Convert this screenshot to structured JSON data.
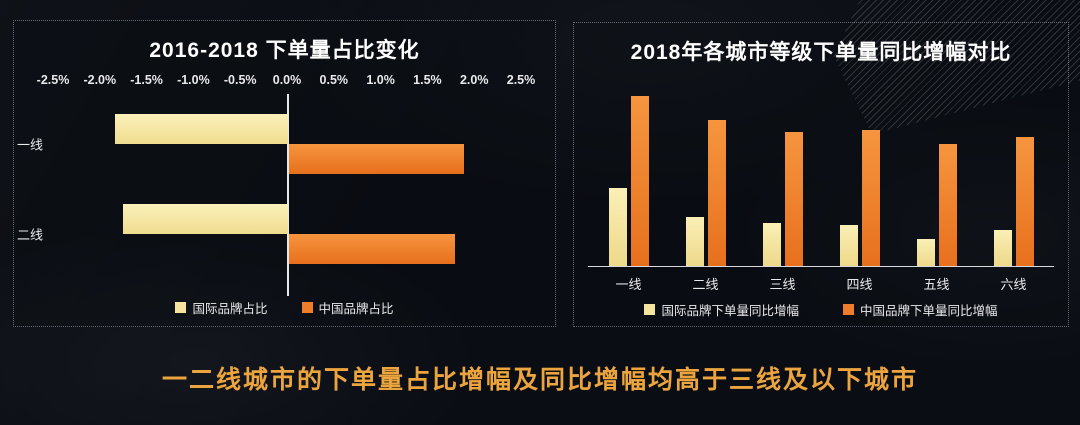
{
  "colors": {
    "background": "#0a0d13",
    "panel_border": "#afb4c0",
    "international_series": "#F5E49D",
    "china_series": "#EF7D2A",
    "axis_text": "#E9E9EC",
    "title_text": "#FFFFFF",
    "note_text": "#ECA53E"
  },
  "bottom_note": "一二线城市的下单量占比增幅及同比增幅均高于三线及以下城市",
  "chart_data": [
    {
      "type": "bar",
      "orientation": "horizontal",
      "title": "2016-2018 下单量占比变化",
      "categories": [
        "一线",
        "二线"
      ],
      "series": [
        {
          "name": "国际品牌占比",
          "color": "#F5E49D",
          "values": [
            -1.85,
            -1.76
          ]
        },
        {
          "name": "中国品牌占比",
          "color": "#EF7D2A",
          "values": [
            1.87,
            1.77
          ]
        }
      ],
      "x_ticks": [
        "-2.5%",
        "-2.0%",
        "-1.5%",
        "-1.0%",
        "-0.5%",
        "0.0%",
        "0.5%",
        "1.0%",
        "1.5%",
        "2.0%",
        "2.5%"
      ],
      "xlim": [
        -2.5,
        2.5
      ],
      "unit": "%",
      "grid": false,
      "legend_position": "bottom"
    },
    {
      "type": "bar",
      "orientation": "vertical",
      "title": "2018年各城市等级下单量同比增幅对比",
      "categories": [
        "一线",
        "二线",
        "三线",
        "四线",
        "五线",
        "六线"
      ],
      "series": [
        {
          "name": "国际品牌下单量同比增幅",
          "color": "#F5E49D",
          "values": [
            46,
            29,
            25,
            24,
            16,
            21
          ]
        },
        {
          "name": "中国品牌下单量同比增幅",
          "color": "#EF7D2A",
          "values": [
            100,
            86,
            79,
            80,
            72,
            76
          ]
        }
      ],
      "ylim": [
        0,
        104
      ],
      "y_axis_labels_shown": false,
      "grid": false,
      "legend_position": "bottom"
    }
  ]
}
